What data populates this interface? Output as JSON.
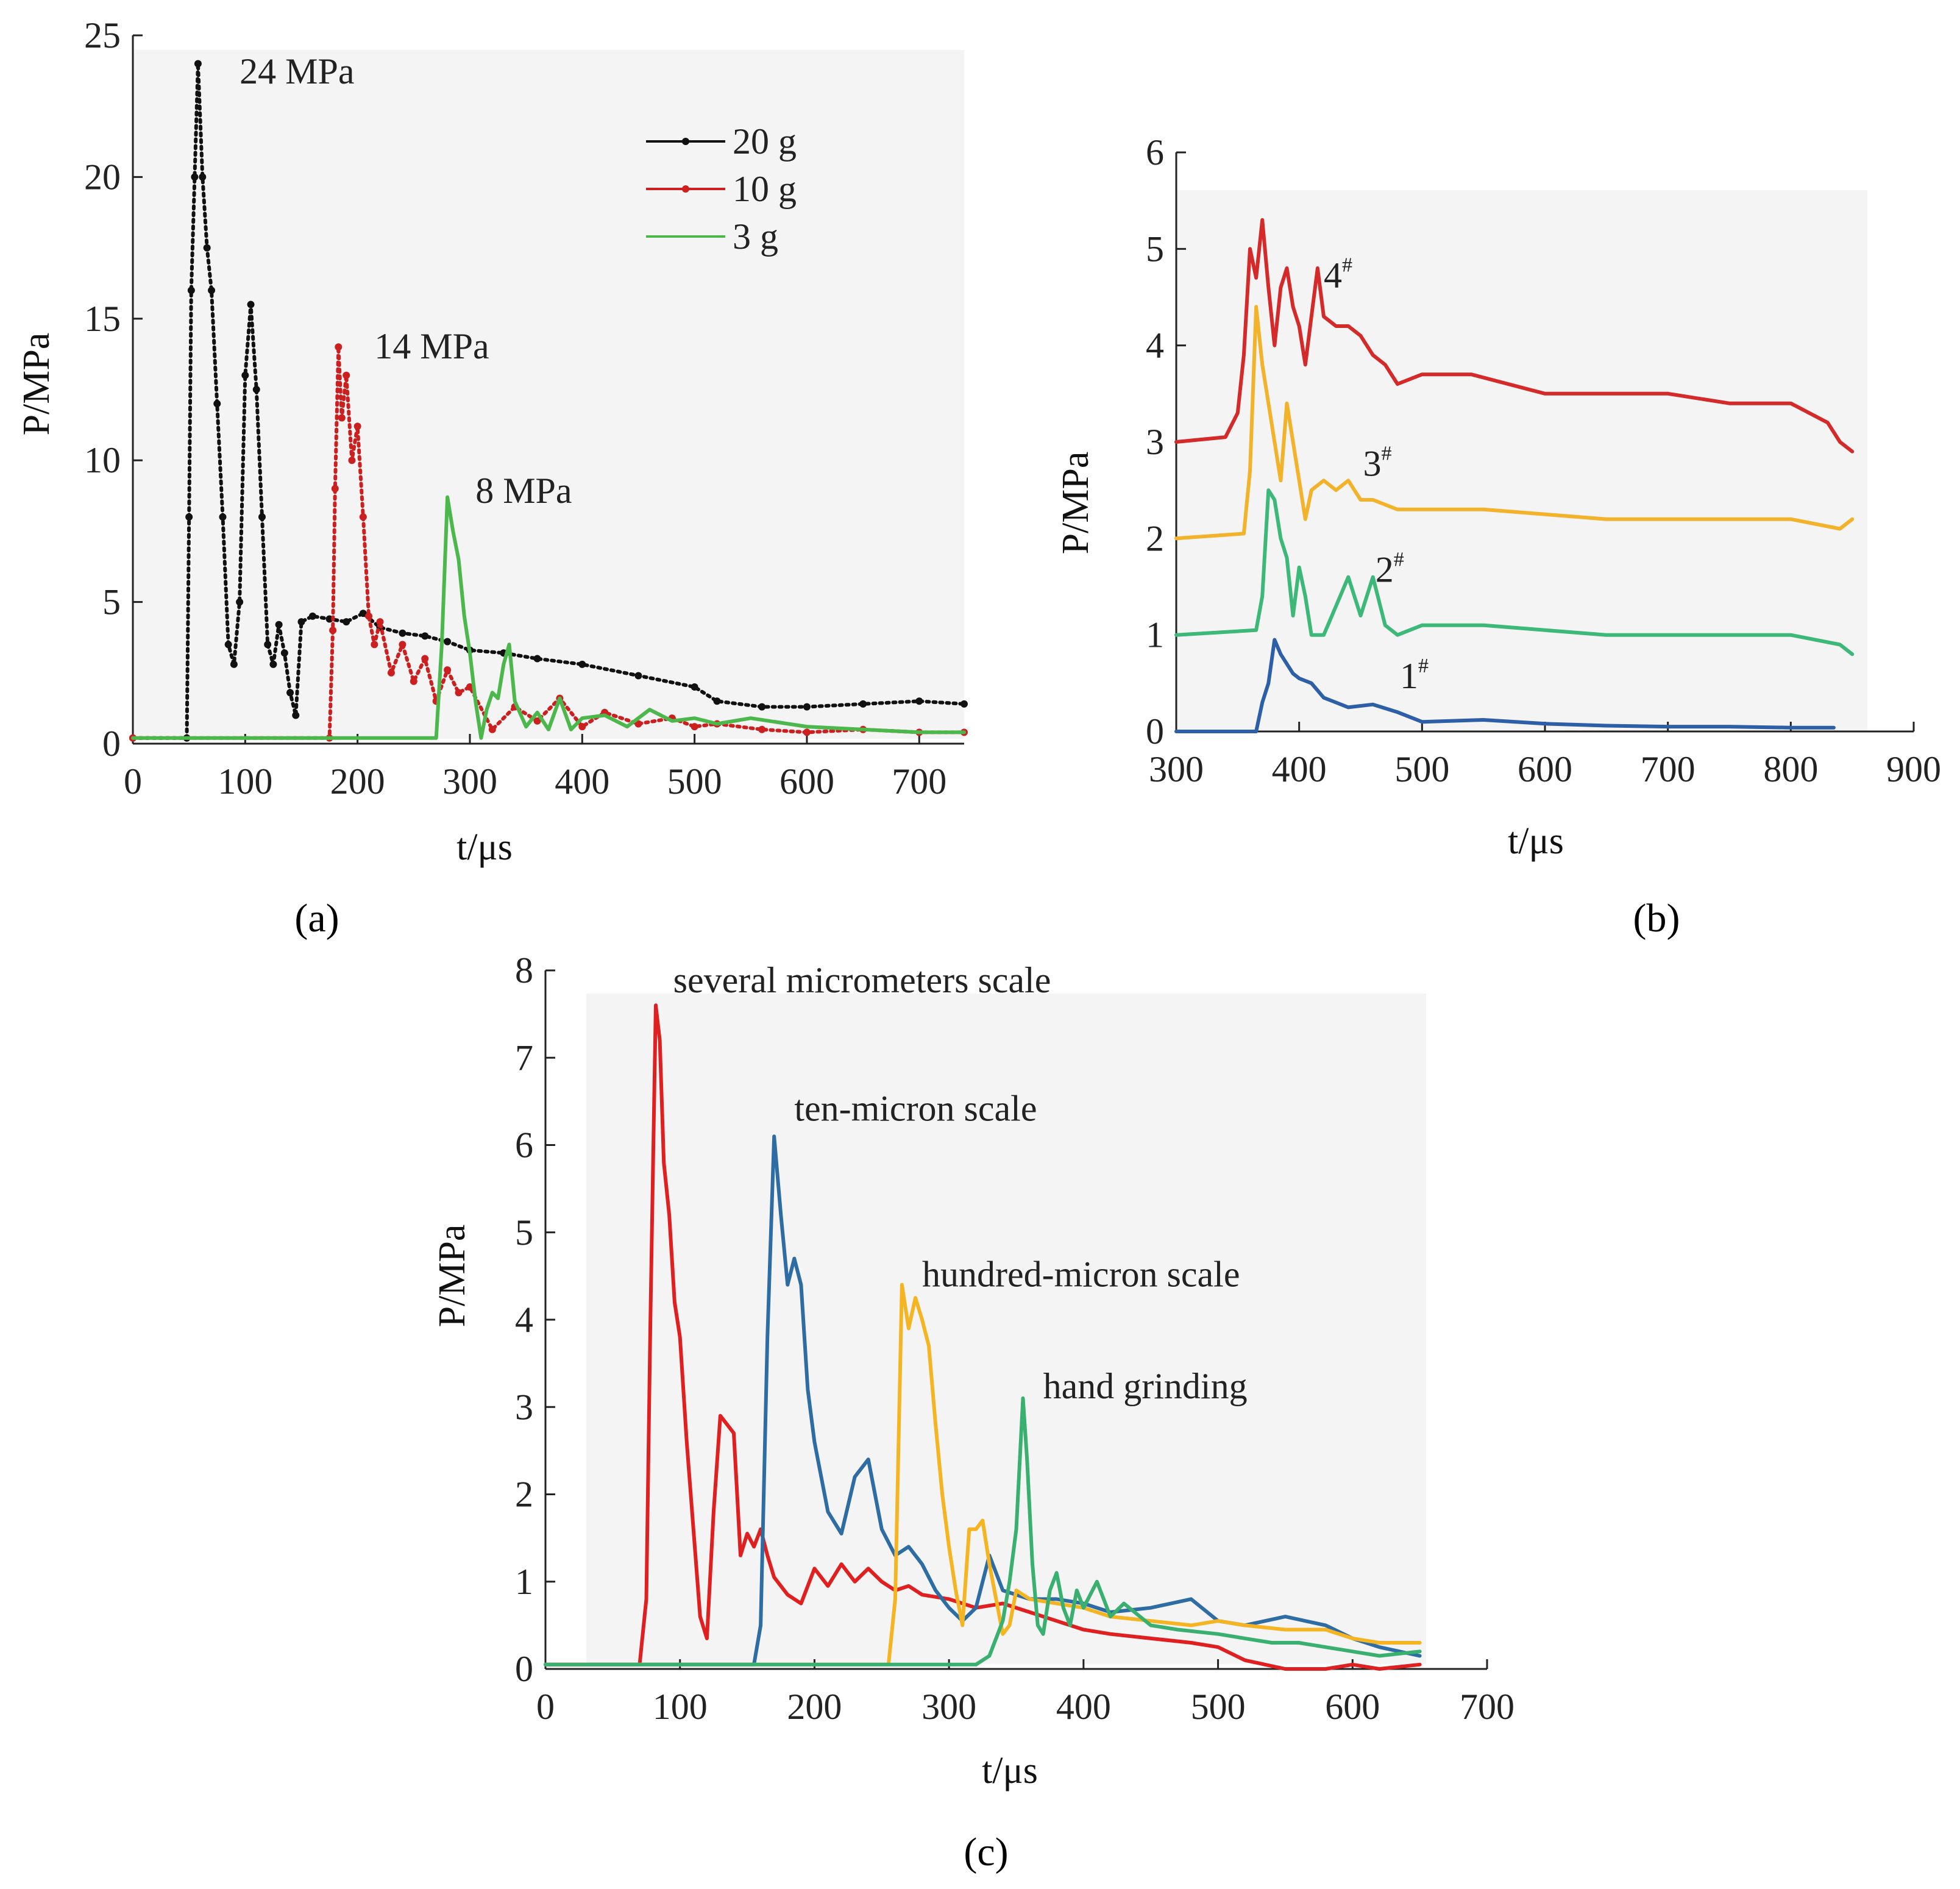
{
  "chart_data": [
    {
      "id": "a",
      "type": "line",
      "panel_label": "a",
      "xlabel": "t/μs",
      "ylabel": "P/MPa",
      "xlim": [
        0,
        740
      ],
      "ylim": [
        0,
        25
      ],
      "xticks": [
        0,
        100,
        200,
        300,
        400,
        500,
        600,
        700
      ],
      "yticks": [
        0,
        5,
        10,
        15,
        20,
        25
      ],
      "legend_position": "top-right",
      "annotations": [
        {
          "text": "24 MPa",
          "x": 95,
          "y": 23.3
        },
        {
          "text": "14 MPa",
          "x": 215,
          "y": 13.6
        },
        {
          "text": "8 MPa",
          "x": 305,
          "y": 8.5
        }
      ],
      "series": [
        {
          "name": "20 g",
          "color": "#111111",
          "style": "dots",
          "x": [
            0,
            48,
            50,
            52,
            55,
            58,
            62,
            66,
            70,
            75,
            80,
            85,
            90,
            95,
            100,
            105,
            110,
            115,
            120,
            125,
            130,
            135,
            140,
            145,
            150,
            160,
            175,
            190,
            205,
            220,
            240,
            260,
            280,
            300,
            330,
            360,
            400,
            450,
            500,
            520,
            560,
            600,
            650,
            700,
            740
          ],
          "y": [
            0.2,
            0.2,
            8,
            16,
            20,
            24,
            20,
            17.5,
            16,
            12,
            8,
            3.5,
            2.8,
            5,
            13,
            15.5,
            12.5,
            8,
            3.5,
            2.8,
            4.2,
            3.2,
            1.8,
            1.0,
            4.3,
            4.5,
            4.4,
            4.3,
            4.6,
            4.1,
            3.9,
            3.8,
            3.6,
            3.3,
            3.2,
            3.0,
            2.8,
            2.4,
            2.0,
            1.5,
            1.3,
            1.3,
            1.4,
            1.5,
            1.4
          ]
        },
        {
          "name": "10 g",
          "color": "#cc1f1f",
          "style": "dots",
          "x": [
            0,
            175,
            178,
            180,
            183,
            186,
            190,
            195,
            200,
            205,
            210,
            215,
            220,
            230,
            240,
            250,
            260,
            270,
            280,
            290,
            300,
            320,
            340,
            360,
            380,
            400,
            420,
            450,
            480,
            500,
            520,
            560,
            600,
            650,
            700,
            740
          ],
          "y": [
            0.2,
            0.2,
            4,
            9,
            14,
            11.5,
            13,
            10,
            11.2,
            8,
            4.5,
            3.5,
            4.3,
            2.5,
            3.5,
            2.2,
            3.0,
            1.5,
            2.6,
            1.8,
            2.0,
            0.5,
            1.3,
            0.8,
            1.6,
            0.6,
            1.1,
            0.7,
            0.9,
            0.6,
            0.7,
            0.5,
            0.4,
            0.5,
            0.4,
            0.4
          ]
        },
        {
          "name": "3 g",
          "color": "#4cb84c",
          "style": "line",
          "x": [
            0,
            270,
            275,
            280,
            285,
            290,
            295,
            300,
            305,
            310,
            315,
            320,
            325,
            330,
            335,
            340,
            350,
            360,
            370,
            380,
            390,
            400,
            420,
            440,
            460,
            480,
            500,
            520,
            550,
            600,
            650,
            700,
            740
          ],
          "y": [
            0.2,
            0.2,
            3.5,
            8.7,
            7.5,
            6.5,
            4.5,
            3.2,
            1.5,
            0.2,
            1.2,
            1.8,
            1.6,
            2.8,
            3.5,
            1.5,
            0.6,
            1.1,
            0.5,
            1.6,
            0.5,
            0.9,
            1.0,
            0.6,
            1.2,
            0.8,
            0.9,
            0.7,
            0.9,
            0.6,
            0.5,
            0.4,
            0.4
          ]
        }
      ]
    },
    {
      "id": "b",
      "type": "line",
      "panel_label": "b",
      "xlabel": "t/μs",
      "ylabel": "P/MPa",
      "xlim": [
        300,
        900
      ],
      "ylim": [
        0,
        6
      ],
      "xticks": [
        300,
        400,
        500,
        600,
        700,
        800,
        900
      ],
      "yticks": [
        0,
        1,
        2,
        3,
        4,
        5,
        6
      ],
      "annotations": [
        {
          "text": "4",
          "sup": "#",
          "x": 420,
          "y": 4.6
        },
        {
          "text": "3",
          "sup": "#",
          "x": 452,
          "y": 2.65
        },
        {
          "text": "2",
          "sup": "#",
          "x": 462,
          "y": 1.55
        },
        {
          "text": "1",
          "sup": "#",
          "x": 482,
          "y": 0.45
        }
      ],
      "series": [
        {
          "name": "4#",
          "color": "#d42a2a",
          "x": [
            300,
            340,
            350,
            355,
            360,
            365,
            370,
            375,
            380,
            385,
            390,
            395,
            400,
            405,
            410,
            415,
            420,
            430,
            440,
            450,
            460,
            470,
            480,
            500,
            540,
            600,
            650,
            700,
            750,
            800,
            830,
            840,
            850
          ],
          "y": [
            3.0,
            3.05,
            3.3,
            3.9,
            5.0,
            4.7,
            5.3,
            4.6,
            4.0,
            4.6,
            4.8,
            4.4,
            4.2,
            3.8,
            4.3,
            4.8,
            4.3,
            4.2,
            4.2,
            4.1,
            3.9,
            3.8,
            3.6,
            3.7,
            3.7,
            3.5,
            3.5,
            3.5,
            3.4,
            3.4,
            3.2,
            3.0,
            2.9
          ]
        },
        {
          "name": "3#",
          "color": "#f2b22a",
          "x": [
            300,
            355,
            360,
            365,
            370,
            375,
            380,
            385,
            390,
            395,
            400,
            405,
            410,
            420,
            430,
            440,
            450,
            460,
            480,
            500,
            550,
            600,
            650,
            700,
            750,
            800,
            840,
            850
          ],
          "y": [
            2.0,
            2.05,
            2.7,
            4.4,
            3.8,
            3.4,
            3.0,
            2.6,
            3.4,
            3.0,
            2.6,
            2.2,
            2.5,
            2.6,
            2.5,
            2.6,
            2.4,
            2.4,
            2.3,
            2.3,
            2.3,
            2.25,
            2.2,
            2.2,
            2.2,
            2.2,
            2.1,
            2.2
          ]
        },
        {
          "name": "2#",
          "color": "#3cb878",
          "x": [
            300,
            365,
            370,
            375,
            380,
            385,
            390,
            395,
            400,
            405,
            410,
            420,
            430,
            440,
            450,
            460,
            470,
            480,
            500,
            550,
            600,
            650,
            700,
            750,
            800,
            840,
            850
          ],
          "y": [
            1.0,
            1.05,
            1.4,
            2.5,
            2.4,
            2.0,
            1.8,
            1.2,
            1.7,
            1.4,
            1.0,
            1.0,
            1.3,
            1.6,
            1.2,
            1.6,
            1.1,
            1.0,
            1.1,
            1.1,
            1.05,
            1.0,
            1.0,
            1.0,
            1.0,
            0.9,
            0.8
          ]
        },
        {
          "name": "1#",
          "color": "#2d5ea8",
          "x": [
            300,
            365,
            370,
            375,
            380,
            385,
            390,
            395,
            400,
            410,
            420,
            430,
            440,
            460,
            480,
            500,
            550,
            600,
            650,
            700,
            750,
            800,
            835
          ],
          "y": [
            0.0,
            0.0,
            0.3,
            0.5,
            0.95,
            0.8,
            0.7,
            0.6,
            0.55,
            0.5,
            0.35,
            0.3,
            0.25,
            0.28,
            0.2,
            0.1,
            0.12,
            0.08,
            0.06,
            0.05,
            0.05,
            0.04,
            0.04
          ]
        }
      ]
    },
    {
      "id": "c",
      "type": "line",
      "panel_label": "c",
      "xlabel": "t/μs",
      "ylabel": "P/MPa",
      "xlim": [
        0,
        700
      ],
      "ylim": [
        0,
        8
      ],
      "xticks": [
        0,
        100,
        200,
        300,
        400,
        500,
        600,
        700
      ],
      "yticks": [
        0,
        1,
        2,
        3,
        4,
        5,
        6,
        7,
        8
      ],
      "annotations": [
        {
          "text": "several micrometers scale",
          "x": 95,
          "y": 7.75
        },
        {
          "text": "ten-micron scale",
          "x": 185,
          "y": 6.28
        },
        {
          "text": "hundred-micron scale",
          "x": 280,
          "y": 4.38
        },
        {
          "text": "hand grinding",
          "x": 370,
          "y": 3.1
        }
      ],
      "series": [
        {
          "name": "several micrometers scale",
          "color": "#e02020",
          "x": [
            0,
            70,
            75,
            78,
            82,
            85,
            88,
            92,
            96,
            100,
            105,
            110,
            115,
            120,
            125,
            130,
            135,
            140,
            145,
            150,
            155,
            160,
            165,
            170,
            180,
            190,
            200,
            210,
            220,
            230,
            240,
            250,
            260,
            270,
            280,
            300,
            320,
            340,
            360,
            380,
            400,
            420,
            450,
            480,
            500,
            520,
            550,
            580,
            600,
            620,
            650
          ],
          "y": [
            0.05,
            0.05,
            0.8,
            4.0,
            7.6,
            7.2,
            5.8,
            5.2,
            4.2,
            3.8,
            2.6,
            1.6,
            0.6,
            0.35,
            1.8,
            2.9,
            2.8,
            2.7,
            1.3,
            1.55,
            1.4,
            1.6,
            1.3,
            1.05,
            0.85,
            0.75,
            1.15,
            0.95,
            1.2,
            1.0,
            1.15,
            1.0,
            0.9,
            0.95,
            0.85,
            0.8,
            0.7,
            0.75,
            0.65,
            0.55,
            0.45,
            0.4,
            0.35,
            0.3,
            0.25,
            0.1,
            0.0,
            0.0,
            0.05,
            0.0,
            0.05
          ]
        },
        {
          "name": "ten-micron scale",
          "color": "#2e6ca4",
          "x": [
            0,
            155,
            160,
            165,
            170,
            175,
            180,
            185,
            190,
            195,
            200,
            210,
            220,
            230,
            240,
            250,
            260,
            270,
            280,
            290,
            300,
            310,
            320,
            330,
            340,
            360,
            380,
            400,
            420,
            450,
            480,
            500,
            520,
            550,
            580,
            600,
            620,
            650
          ],
          "y": [
            0.05,
            0.05,
            0.5,
            3.8,
            6.1,
            5.2,
            4.4,
            4.7,
            4.4,
            3.2,
            2.6,
            1.8,
            1.55,
            2.2,
            2.4,
            1.6,
            1.3,
            1.4,
            1.2,
            0.9,
            0.7,
            0.55,
            0.7,
            1.3,
            0.9,
            0.8,
            0.8,
            0.75,
            0.65,
            0.7,
            0.8,
            0.55,
            0.5,
            0.6,
            0.5,
            0.35,
            0.25,
            0.15
          ]
        },
        {
          "name": "hundred-micron scale",
          "color": "#f5b522",
          "x": [
            0,
            255,
            260,
            265,
            270,
            275,
            280,
            285,
            290,
            295,
            300,
            305,
            310,
            315,
            320,
            325,
            330,
            335,
            340,
            345,
            350,
            360,
            380,
            400,
            420,
            450,
            480,
            500,
            520,
            550,
            580,
            600,
            620,
            650
          ],
          "y": [
            0.05,
            0.05,
            0.8,
            4.4,
            3.9,
            4.25,
            4.0,
            3.7,
            2.8,
            2.0,
            1.4,
            0.9,
            0.5,
            1.6,
            1.6,
            1.7,
            1.2,
            0.8,
            0.4,
            0.5,
            0.9,
            0.8,
            0.75,
            0.7,
            0.6,
            0.55,
            0.5,
            0.55,
            0.5,
            0.45,
            0.45,
            0.35,
            0.3,
            0.3
          ]
        },
        {
          "name": "hand grinding",
          "color": "#3ab070",
          "x": [
            0,
            320,
            330,
            340,
            345,
            350,
            355,
            358,
            362,
            366,
            370,
            375,
            380,
            385,
            390,
            395,
            400,
            410,
            420,
            430,
            450,
            470,
            500,
            520,
            540,
            560,
            580,
            600,
            620,
            650
          ],
          "y": [
            0.05,
            0.05,
            0.15,
            0.55,
            1.0,
            1.6,
            3.1,
            2.4,
            1.2,
            0.5,
            0.4,
            0.9,
            1.1,
            0.7,
            0.5,
            0.9,
            0.7,
            1.0,
            0.6,
            0.75,
            0.5,
            0.45,
            0.4,
            0.35,
            0.3,
            0.3,
            0.25,
            0.2,
            0.15,
            0.2
          ]
        }
      ]
    }
  ],
  "panel_labels": {
    "a": "(a)",
    "b": "(b)",
    "c": "(c)"
  }
}
